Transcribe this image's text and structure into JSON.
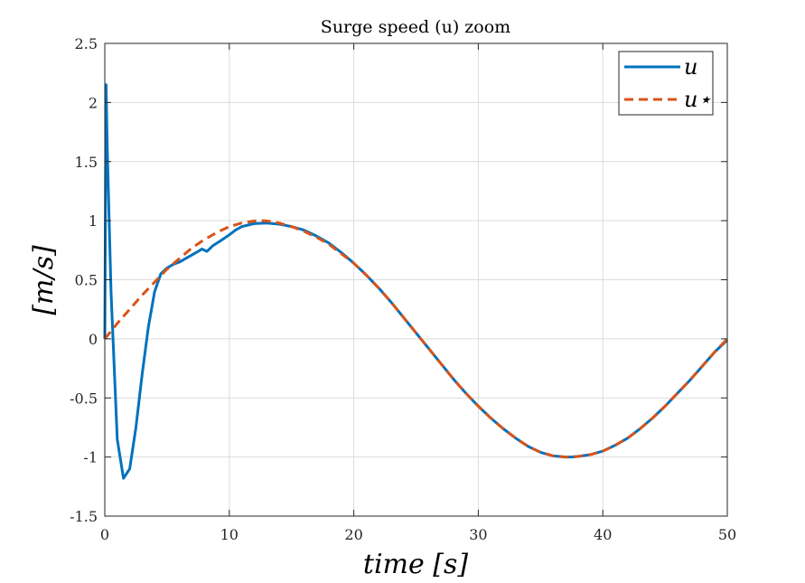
{
  "chart_data": {
    "type": "line",
    "title": "Surge speed (u) zoom",
    "xlabel": "time [s]",
    "ylabel": "[m/s]",
    "xlim": [
      0,
      50
    ],
    "ylim": [
      -1.5,
      2.5
    ],
    "xticks": [
      0,
      10,
      20,
      30,
      40,
      50
    ],
    "xtick_labels": [
      "0",
      "10",
      "20",
      "30",
      "40",
      "50"
    ],
    "yticks": [
      -1.5,
      -1,
      -0.5,
      0,
      0.5,
      1,
      1.5,
      2,
      2.5
    ],
    "ytick_labels": [
      "-1.5",
      "-1",
      "-0.5",
      "0",
      "0.5",
      "1",
      "1.5",
      "2",
      "2.5"
    ],
    "grid": true,
    "legend_position": "top-right",
    "series": [
      {
        "name": "u",
        "color": "#0072BD",
        "style": "solid",
        "points": [
          [
            0,
            0.0
          ],
          [
            0.1,
            2.15
          ],
          [
            0.2,
            1.6
          ],
          [
            0.5,
            0.4
          ],
          [
            1.0,
            -0.85
          ],
          [
            1.5,
            -1.18
          ],
          [
            2.0,
            -1.1
          ],
          [
            2.5,
            -0.75
          ],
          [
            3.0,
            -0.3
          ],
          [
            3.5,
            0.1
          ],
          [
            4.0,
            0.4
          ],
          [
            4.5,
            0.55
          ],
          [
            5.0,
            0.6
          ],
          [
            5.5,
            0.63
          ],
          [
            6.0,
            0.65
          ],
          [
            6.5,
            0.68
          ],
          [
            7.0,
            0.71
          ],
          [
            7.5,
            0.74
          ],
          [
            7.8,
            0.76
          ],
          [
            8.2,
            0.74
          ],
          [
            8.7,
            0.79
          ],
          [
            9.3,
            0.83
          ],
          [
            10.0,
            0.88
          ],
          [
            10.5,
            0.92
          ],
          [
            11.0,
            0.95
          ],
          [
            12.0,
            0.975
          ],
          [
            13.0,
            0.98
          ],
          [
            14.0,
            0.97
          ],
          [
            15.0,
            0.95
          ],
          [
            16.0,
            0.92
          ],
          [
            17.0,
            0.87
          ],
          [
            18.0,
            0.81
          ],
          [
            19.0,
            0.73
          ],
          [
            20.0,
            0.64
          ],
          [
            21.0,
            0.54
          ],
          [
            22.0,
            0.43
          ],
          [
            23.0,
            0.31
          ],
          [
            24.0,
            0.18
          ],
          [
            25.0,
            0.05
          ],
          [
            26.0,
            -0.08
          ],
          [
            27.0,
            -0.21
          ],
          [
            28.0,
            -0.34
          ],
          [
            29.0,
            -0.46
          ],
          [
            30.0,
            -0.57
          ],
          [
            31.0,
            -0.67
          ],
          [
            32.0,
            -0.76
          ],
          [
            33.0,
            -0.84
          ],
          [
            34.0,
            -0.91
          ],
          [
            35.0,
            -0.96
          ],
          [
            36.0,
            -0.99
          ],
          [
            37.0,
            -1.0
          ],
          [
            37.5,
            -1.0
          ],
          [
            38.0,
            -0.995
          ],
          [
            39.0,
            -0.98
          ],
          [
            40.0,
            -0.95
          ],
          [
            41.0,
            -0.9
          ],
          [
            42.0,
            -0.84
          ],
          [
            43.0,
            -0.76
          ],
          [
            44.0,
            -0.67
          ],
          [
            45.0,
            -0.57
          ],
          [
            46.0,
            -0.46
          ],
          [
            47.0,
            -0.35
          ],
          [
            48.0,
            -0.23
          ],
          [
            49.0,
            -0.11
          ],
          [
            50.0,
            -0.01
          ]
        ]
      },
      {
        "name": "u⋆",
        "color": "#D95319",
        "style": "dashed",
        "points": [
          [
            0,
            0.0
          ],
          [
            1.0,
            0.13
          ],
          [
            2.0,
            0.25
          ],
          [
            3.0,
            0.37
          ],
          [
            4.0,
            0.48
          ],
          [
            5.0,
            0.59
          ],
          [
            6.0,
            0.68
          ],
          [
            7.0,
            0.77
          ],
          [
            8.0,
            0.84
          ],
          [
            9.0,
            0.9
          ],
          [
            10.0,
            0.95
          ],
          [
            11.0,
            0.98
          ],
          [
            12.0,
            0.997
          ],
          [
            12.5,
            1.0
          ],
          [
            13.0,
            0.998
          ],
          [
            14.0,
            0.98
          ],
          [
            15.0,
            0.95
          ],
          [
            16.0,
            0.91
          ],
          [
            17.0,
            0.86
          ],
          [
            18.0,
            0.8
          ],
          [
            19.0,
            0.72
          ],
          [
            20.0,
            0.64
          ],
          [
            21.0,
            0.54
          ],
          [
            22.0,
            0.43
          ],
          [
            23.0,
            0.31
          ],
          [
            24.0,
            0.18
          ],
          [
            25.0,
            0.05
          ],
          [
            26.0,
            -0.08
          ],
          [
            27.0,
            -0.21
          ],
          [
            28.0,
            -0.34
          ],
          [
            29.0,
            -0.46
          ],
          [
            30.0,
            -0.57
          ],
          [
            31.0,
            -0.67
          ],
          [
            32.0,
            -0.76
          ],
          [
            33.0,
            -0.84
          ],
          [
            34.0,
            -0.91
          ],
          [
            35.0,
            -0.96
          ],
          [
            36.0,
            -0.99
          ],
          [
            37.0,
            -1.0
          ],
          [
            37.5,
            -1.0
          ],
          [
            38.0,
            -0.995
          ],
          [
            39.0,
            -0.98
          ],
          [
            40.0,
            -0.95
          ],
          [
            41.0,
            -0.9
          ],
          [
            42.0,
            -0.84
          ],
          [
            43.0,
            -0.76
          ],
          [
            44.0,
            -0.67
          ],
          [
            45.0,
            -0.57
          ],
          [
            46.0,
            -0.46
          ],
          [
            47.0,
            -0.35
          ],
          [
            48.0,
            -0.23
          ],
          [
            49.0,
            -0.11
          ],
          [
            50.0,
            0.0
          ]
        ]
      }
    ]
  }
}
